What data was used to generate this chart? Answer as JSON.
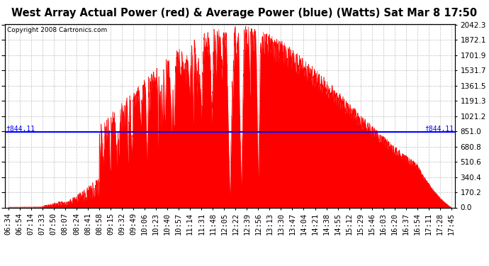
{
  "title": "West Array Actual Power (red) & Average Power (blue) (Watts) Sat Mar 8 17:50",
  "copyright": "Copyright 2008 Cartronics.com",
  "average_power": 844.11,
  "y_max": 2042.3,
  "y_min": 0.0,
  "y_ticks": [
    0.0,
    170.2,
    340.4,
    510.6,
    680.8,
    851.0,
    1021.2,
    1191.3,
    1361.5,
    1531.7,
    1701.9,
    1872.1,
    2042.3
  ],
  "x_labels": [
    "06:34",
    "06:54",
    "07:14",
    "07:33",
    "07:50",
    "08:07",
    "08:24",
    "08:41",
    "08:58",
    "09:15",
    "09:32",
    "09:49",
    "10:06",
    "10:23",
    "10:40",
    "10:57",
    "11:14",
    "11:31",
    "11:48",
    "12:05",
    "12:22",
    "12:39",
    "12:56",
    "13:13",
    "13:30",
    "13:47",
    "14:04",
    "14:21",
    "14:38",
    "14:55",
    "15:12",
    "15:29",
    "15:46",
    "16:03",
    "16:20",
    "16:37",
    "16:54",
    "17:11",
    "17:28",
    "17:45"
  ],
  "background_color": "#ffffff",
  "plot_bg_color": "#ffffff",
  "grid_color": "#b0b0b0",
  "red_color": "#ff0000",
  "blue_color": "#0000ff",
  "title_fontsize": 10.5,
  "tick_fontsize": 7.5,
  "avg_label": "†844.11"
}
